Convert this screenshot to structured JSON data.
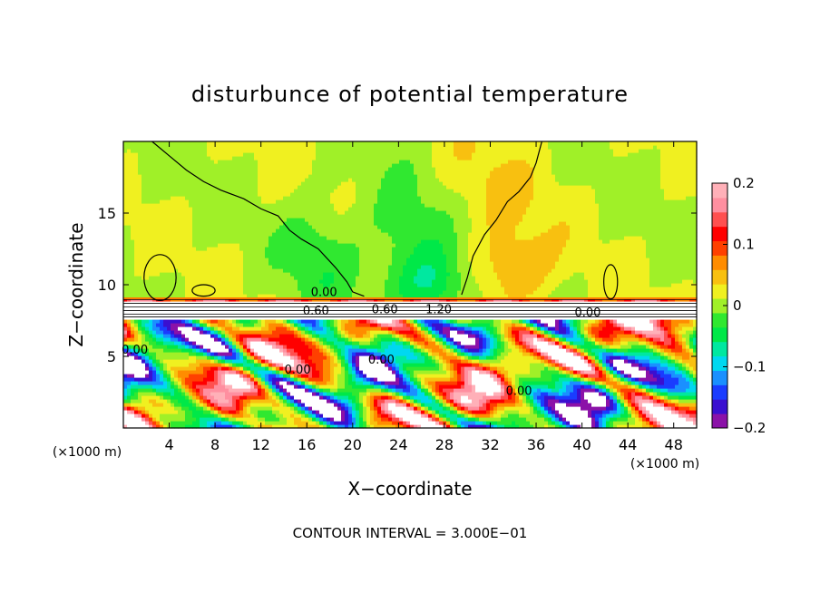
{
  "chart_data": {
    "type": "heatmap",
    "title": "disturbunce of potential temperature",
    "xlabel": "X−coordinate",
    "ylabel": "Z−coordinate",
    "x_unit_left": "(×1000 m)",
    "x_unit_right": "(×1000 m)",
    "xlim": [
      0,
      50
    ],
    "ylim": [
      0,
      20
    ],
    "x_ticks": [
      4,
      8,
      12,
      16,
      20,
      24,
      28,
      32,
      36,
      40,
      44,
      48
    ],
    "x_tick_labels": [
      "4",
      "8",
      "12",
      "16",
      "20",
      "24",
      "28",
      "32",
      "36",
      "40",
      "44",
      "48"
    ],
    "y_ticks": [
      5,
      10,
      15
    ],
    "y_tick_labels": [
      "5",
      "10",
      "15"
    ],
    "contour_labels": [
      "0.00",
      "0.60",
      "1.20",
      "0.60",
      "0.00",
      "0.00",
      "0.00",
      "0.00",
      "0.00"
    ],
    "contour_interval_text": "CONTOUR INTERVAL = 3.000E−01",
    "colorbar": {
      "range": [
        -0.2,
        0.2
      ],
      "tick_labels": [
        "0.2",
        "0.1",
        "0",
        "−0.1",
        "−0.2"
      ],
      "tick_values": [
        0.2,
        0.1,
        0,
        -0.1,
        -0.2
      ],
      "colors": [
        "#8b12a8",
        "#3a0fd0",
        "#1a3cff",
        "#1a90ff",
        "#00d8f0",
        "#00e8a0",
        "#00e848",
        "#30e830",
        "#a0f028",
        "#f0f020",
        "#f8c010",
        "#ff8c00",
        "#ff4000",
        "#ff0000",
        "#ff5050",
        "#ff8fa0",
        "#ffb0b8"
      ]
    }
  }
}
